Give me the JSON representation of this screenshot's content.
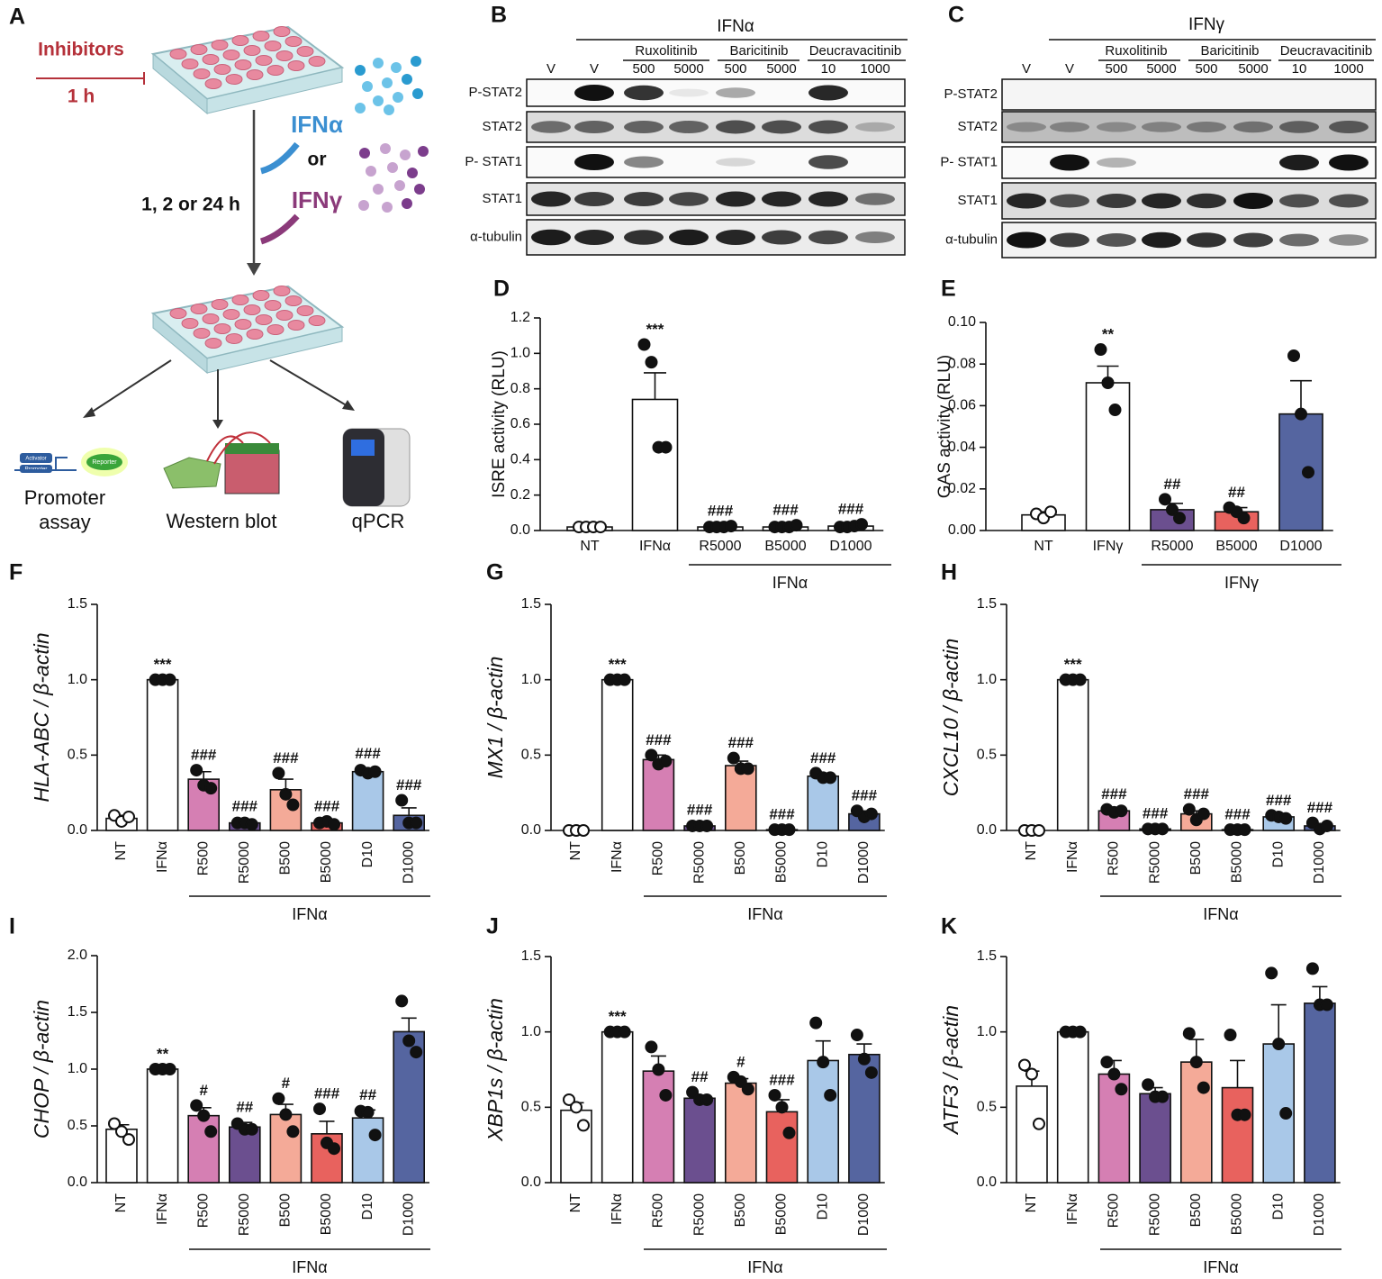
{
  "panel_a": {
    "panel": "A",
    "inhibitors": "Inhibitors",
    "time1": "1 h",
    "ifna": "IFNα",
    "or": "or",
    "ifng": "IFNγ",
    "time2": "1, 2 or 24 h",
    "promoter_assay": [
      "Promoter",
      "assay"
    ],
    "western_blot": "Western blot",
    "qpcr": "qPCR",
    "reporter_parts": [
      "Activator",
      "Promoter",
      "Reporter"
    ]
  },
  "blots": [
    {
      "panel": "B",
      "treatment": "IFNα",
      "vehicle": [
        "V",
        "V"
      ],
      "drugs": [
        {
          "name": "Ruxolitinib",
          "doses": [
            500,
            5000
          ]
        },
        {
          "name": "Baricitinib",
          "doses": [
            500,
            5000
          ]
        },
        {
          "name": "Deucravacitinib",
          "doses": [
            10,
            1000
          ]
        }
      ],
      "rows": [
        "P-STAT2",
        "STAT2",
        "P- STAT1",
        "STAT1",
        "α-tubulin"
      ]
    },
    {
      "panel": "C",
      "treatment": "IFNγ",
      "vehicle": [
        "V",
        "V"
      ],
      "drugs": [
        {
          "name": "Ruxolitinib",
          "doses": [
            500,
            5000
          ]
        },
        {
          "name": "Baricitinib",
          "doses": [
            500,
            5000
          ]
        },
        {
          "name": "Deucravacitinib",
          "doses": [
            10,
            1000
          ]
        }
      ],
      "rows": [
        "P-STAT2",
        "STAT2",
        "P- STAT1",
        "STAT1",
        "α-tubulin"
      ]
    }
  ],
  "chart_data": [
    {
      "type": "bar",
      "panel": "D",
      "y_label": "ISRE activity (RLU)",
      "categories": [
        "NT",
        "IFNα",
        "R5000",
        "B5000",
        "D1000"
      ],
      "values": [
        0.02,
        0.74,
        0.02,
        0.02,
        0.025
      ],
      "errors": [
        0.003,
        0.15,
        0.002,
        0.003,
        0.004
      ],
      "points": [
        [
          0.02,
          0.02,
          0.02,
          0.02
        ],
        [
          1.05,
          0.95,
          0.47,
          0.47
        ],
        [
          0.02,
          0.02,
          0.02,
          0.025
        ],
        [
          0.02,
          0.02,
          0.02,
          0.03
        ],
        [
          0.02,
          0.02,
          0.025,
          0.035
        ]
      ],
      "marks": [
        null,
        "***",
        "###",
        "###",
        "###"
      ],
      "colors": [
        "#ffffff",
        "#ffffff",
        "#ffffff",
        "#ffffff",
        "#ffffff"
      ],
      "group_label": "IFNα",
      "ylim": [
        0,
        1.2
      ],
      "yticks": [
        {
          "value": 0,
          "label": "0.0"
        },
        0.2,
        0.4,
        0.6,
        0.8,
        {
          "value": 1,
          "label": "1.0"
        },
        1.2
      ]
    },
    {
      "type": "bar",
      "panel": "E",
      "y_label": "GAS activity (RLU)",
      "categories": [
        "NT",
        "IFNγ",
        "R5000",
        "B5000",
        "D1000"
      ],
      "values": [
        0.0075,
        0.071,
        0.01,
        0.009,
        0.056
      ],
      "errors": [
        0.0015,
        0.008,
        0.003,
        0.002,
        0.016
      ],
      "points": [
        [
          0.008,
          0.006,
          0.009
        ],
        [
          0.087,
          0.071,
          0.058
        ],
        [
          0.015,
          0.01,
          0.006
        ],
        [
          0.011,
          0.009,
          0.006
        ],
        [
          0.084,
          0.056,
          0.028
        ]
      ],
      "marks": [
        null,
        "**",
        "##",
        "##",
        null
      ],
      "colors": [
        "#ffffff",
        "#ffffff",
        "#6b4f8f",
        "#e8625e",
        "#5565a0"
      ],
      "group_label": "IFNγ",
      "ylim": [
        0,
        0.1
      ],
      "yticks": [
        {
          "value": 0,
          "label": "0.00"
        },
        {
          "value": 0.02,
          "label": "0.02"
        },
        {
          "value": 0.04,
          "label": "0.04"
        },
        {
          "value": 0.06,
          "label": "0.06"
        },
        {
          "value": 0.08,
          "label": "0.08"
        },
        {
          "value": 0.1,
          "label": "0.10"
        }
      ]
    },
    {
      "type": "bar",
      "panel": "F",
      "y_label": "HLA-ABC / β-actin",
      "categories": [
        "NT",
        "IFNα",
        "R500",
        "R5000",
        "B500",
        "B5000",
        "D10",
        "D1000"
      ],
      "values": [
        0.08,
        1.0,
        0.34,
        0.05,
        0.27,
        0.05,
        0.39,
        0.1
      ],
      "errors": [
        0.02,
        0,
        0.05,
        0.01,
        0.07,
        0.01,
        0.02,
        0.05
      ],
      "points": [
        [
          0.1,
          0.06,
          0.09
        ],
        [
          1,
          1,
          1
        ],
        [
          0.4,
          0.3,
          0.28
        ],
        [
          0.05,
          0.05,
          0.04
        ],
        [
          0.38,
          0.24,
          0.17
        ],
        [
          0.05,
          0.06,
          0.04
        ],
        [
          0.4,
          0.38,
          0.39
        ],
        [
          0.2,
          0.05,
          0.05
        ]
      ],
      "marks": [
        null,
        "***",
        "###",
        "###",
        "###",
        "###",
        "###",
        "###"
      ],
      "colors": [
        "#ffffff",
        "#ffffff",
        "#d57fb3",
        "#6b4f8f",
        "#f4aa98",
        "#e8625e",
        "#a9c8e8",
        "#5565a0"
      ],
      "group_label": "IFNα",
      "ylim": [
        0,
        1.5
      ],
      "yticks": [
        {
          "value": 0,
          "label": "0.0"
        },
        0.5,
        {
          "value": 1,
          "label": "1.0"
        },
        1.5
      ]
    },
    {
      "type": "bar",
      "panel": "G",
      "y_label": "MX1 / β-actin",
      "categories": [
        "NT",
        "IFNα",
        "R500",
        "R5000",
        "B500",
        "B5000",
        "D10",
        "D1000"
      ],
      "values": [
        0.0,
        1.0,
        0.47,
        0.03,
        0.43,
        0.005,
        0.36,
        0.11
      ],
      "errors": [
        0,
        0,
        0.03,
        0.005,
        0.03,
        0,
        0.02,
        0.02
      ],
      "points": [
        [
          0,
          0,
          0
        ],
        [
          1,
          1,
          1
        ],
        [
          0.5,
          0.44,
          0.46
        ],
        [
          0.03,
          0.03,
          0.03
        ],
        [
          0.48,
          0.41,
          0.41
        ],
        [
          0.005,
          0.005,
          0.005
        ],
        [
          0.38,
          0.35,
          0.35
        ],
        [
          0.13,
          0.09,
          0.11
        ]
      ],
      "marks": [
        null,
        "***",
        "###",
        "###",
        "###",
        "###",
        "###",
        "###"
      ],
      "colors": [
        "#ffffff",
        "#ffffff",
        "#d57fb3",
        "#6b4f8f",
        "#f4aa98",
        "#e8625e",
        "#a9c8e8",
        "#5565a0"
      ],
      "group_label": "IFNα",
      "ylim": [
        0,
        1.5
      ],
      "yticks": [
        {
          "value": 0,
          "label": "0.0"
        },
        0.5,
        {
          "value": 1,
          "label": "1.0"
        },
        1.5
      ]
    },
    {
      "type": "bar",
      "panel": "H",
      "y_label": "CXCL10 / β-actin",
      "categories": [
        "NT",
        "IFNα",
        "R500",
        "R5000",
        "B500",
        "B5000",
        "D10",
        "D1000"
      ],
      "values": [
        0.0,
        1.0,
        0.13,
        0.01,
        0.11,
        0.005,
        0.09,
        0.03
      ],
      "errors": [
        0,
        0,
        0.01,
        0.003,
        0.02,
        0,
        0.01,
        0.01
      ],
      "points": [
        [
          0,
          0,
          0
        ],
        [
          1,
          1,
          1
        ],
        [
          0.14,
          0.12,
          0.13
        ],
        [
          0.01,
          0.01,
          0.01
        ],
        [
          0.14,
          0.07,
          0.11
        ],
        [
          0.005,
          0.005,
          0.005
        ],
        [
          0.1,
          0.09,
          0.08
        ],
        [
          0.05,
          0.01,
          0.03
        ]
      ],
      "marks": [
        null,
        "***",
        "###",
        "###",
        "###",
        "###",
        "###",
        "###"
      ],
      "colors": [
        "#ffffff",
        "#ffffff",
        "#d57fb3",
        "#6b4f8f",
        "#f4aa98",
        "#e8625e",
        "#a9c8e8",
        "#5565a0"
      ],
      "group_label": "IFNα",
      "ylim": [
        0,
        1.5
      ],
      "yticks": [
        {
          "value": 0,
          "label": "0.0"
        },
        0.5,
        {
          "value": 1,
          "label": "1.0"
        },
        1.5
      ]
    },
    {
      "type": "bar",
      "panel": "I",
      "y_label": "CHOP / β-actin",
      "categories": [
        "NT",
        "IFNα",
        "R500",
        "R5000",
        "B500",
        "B5000",
        "D10",
        "D1000"
      ],
      "values": [
        0.47,
        1.0,
        0.59,
        0.49,
        0.6,
        0.43,
        0.57,
        1.33
      ],
      "errors": [
        0.04,
        0,
        0.07,
        0.04,
        0.09,
        0.11,
        0.07,
        0.12
      ],
      "points": [
        [
          0.52,
          0.45,
          0.38
        ],
        [
          1,
          1,
          1
        ],
        [
          0.68,
          0.59,
          0.45
        ],
        [
          0.52,
          0.47,
          0.47
        ],
        [
          0.74,
          0.6,
          0.45
        ],
        [
          0.65,
          0.35,
          0.3
        ],
        [
          0.63,
          0.62,
          0.42
        ],
        [
          1.6,
          1.25,
          1.15
        ]
      ],
      "marks": [
        null,
        "**",
        "#",
        "##",
        "#",
        "###",
        "##",
        null
      ],
      "colors": [
        "#ffffff",
        "#ffffff",
        "#d57fb3",
        "#6b4f8f",
        "#f4aa98",
        "#e8625e",
        "#a9c8e8",
        "#5565a0"
      ],
      "group_label": "IFNα",
      "ylim": [
        0,
        2
      ],
      "yticks": [
        {
          "value": 0,
          "label": "0.0"
        },
        0.5,
        {
          "value": 1,
          "label": "1.0"
        },
        1.5,
        {
          "value": 2,
          "label": "2.0"
        }
      ]
    },
    {
      "type": "bar",
      "panel": "J",
      "y_label": "XBP1s / β-actin",
      "categories": [
        "NT",
        "IFNα",
        "R500",
        "R5000",
        "B500",
        "B5000",
        "D10",
        "D1000"
      ],
      "values": [
        0.48,
        1.0,
        0.74,
        0.56,
        0.66,
        0.47,
        0.81,
        0.85
      ],
      "errors": [
        0.05,
        0,
        0.1,
        0.02,
        0.03,
        0.08,
        0.13,
        0.07
      ],
      "points": [
        [
          0.55,
          0.5,
          0.38
        ],
        [
          1,
          1,
          1
        ],
        [
          0.9,
          0.75,
          0.58
        ],
        [
          0.6,
          0.55,
          0.55
        ],
        [
          0.7,
          0.67,
          0.62
        ],
        [
          0.58,
          0.5,
          0.33
        ],
        [
          1.06,
          0.8,
          0.58
        ],
        [
          0.98,
          0.82,
          0.73
        ]
      ],
      "marks": [
        null,
        "***",
        null,
        "##",
        "#",
        "###",
        null,
        null
      ],
      "colors": [
        "#ffffff",
        "#ffffff",
        "#d57fb3",
        "#6b4f8f",
        "#f4aa98",
        "#e8625e",
        "#a9c8e8",
        "#5565a0"
      ],
      "group_label": "IFNα",
      "ylim": [
        0,
        1.5
      ],
      "yticks": [
        {
          "value": 0,
          "label": "0.0"
        },
        0.5,
        {
          "value": 1,
          "label": "1.0"
        },
        1.5
      ]
    },
    {
      "type": "bar",
      "panel": "K",
      "y_label": "ATF3 / β-actin",
      "categories": [
        "NT",
        "IFNα",
        "R500",
        "R5000",
        "B500",
        "B5000",
        "D10",
        "D1000"
      ],
      "values": [
        0.64,
        1.0,
        0.72,
        0.59,
        0.8,
        0.63,
        0.92,
        1.19
      ],
      "errors": [
        0.1,
        0,
        0.09,
        0.04,
        0.15,
        0.18,
        0.26,
        0.11
      ],
      "points": [
        [
          0.78,
          0.72,
          0.39
        ],
        [
          1,
          1,
          1
        ],
        [
          0.8,
          0.72,
          0.62
        ],
        [
          0.65,
          0.57,
          0.57
        ],
        [
          0.99,
          0.8,
          0.63
        ],
        [
          0.98,
          0.45,
          0.45
        ],
        [
          1.39,
          0.92,
          0.46
        ],
        [
          1.42,
          1.18,
          1.18
        ]
      ],
      "marks": [
        null,
        null,
        null,
        null,
        null,
        null,
        null,
        null
      ],
      "colors": [
        "#ffffff",
        "#ffffff",
        "#d57fb3",
        "#6b4f8f",
        "#f4aa98",
        "#e8625e",
        "#a9c8e8",
        "#5565a0"
      ],
      "group_label": "IFNα",
      "ylim": [
        0,
        1.5
      ],
      "yticks": [
        {
          "value": 0,
          "label": "0.0"
        },
        0.5,
        {
          "value": 1,
          "label": "1.0"
        },
        1.5
      ]
    }
  ]
}
